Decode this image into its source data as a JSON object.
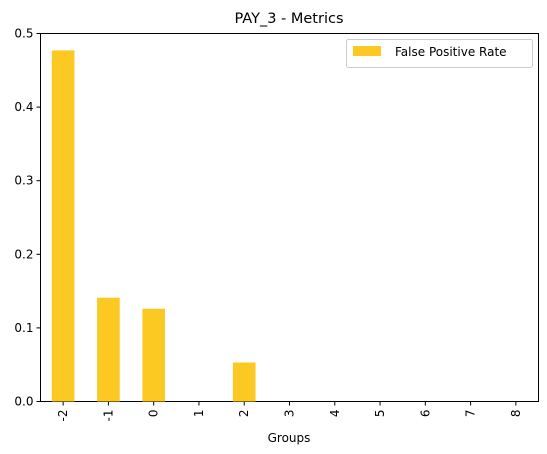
{
  "chart_data": {
    "type": "bar",
    "title": "PAY_3 - Metrics",
    "xlabel": "Groups",
    "ylabel": "",
    "categories": [
      "-2",
      "-1",
      "0",
      "1",
      "2",
      "3",
      "4",
      "5",
      "6",
      "7",
      "8"
    ],
    "series": [
      {
        "name": "False Positive Rate",
        "values": [
          0.477,
          0.141,
          0.126,
          0.0,
          0.053,
          0.0,
          0.0,
          0.0,
          0.0,
          0.0,
          0.0
        ],
        "color": "#fcc822"
      }
    ],
    "ylim": [
      0,
      0.5
    ],
    "yticks": [
      0.0,
      0.1,
      0.2,
      0.3,
      0.4,
      0.5
    ],
    "ytick_labels": [
      "0.0",
      "0.1",
      "0.2",
      "0.3",
      "0.4",
      "0.5"
    ],
    "legend_position": "top-right",
    "grid": false
  }
}
